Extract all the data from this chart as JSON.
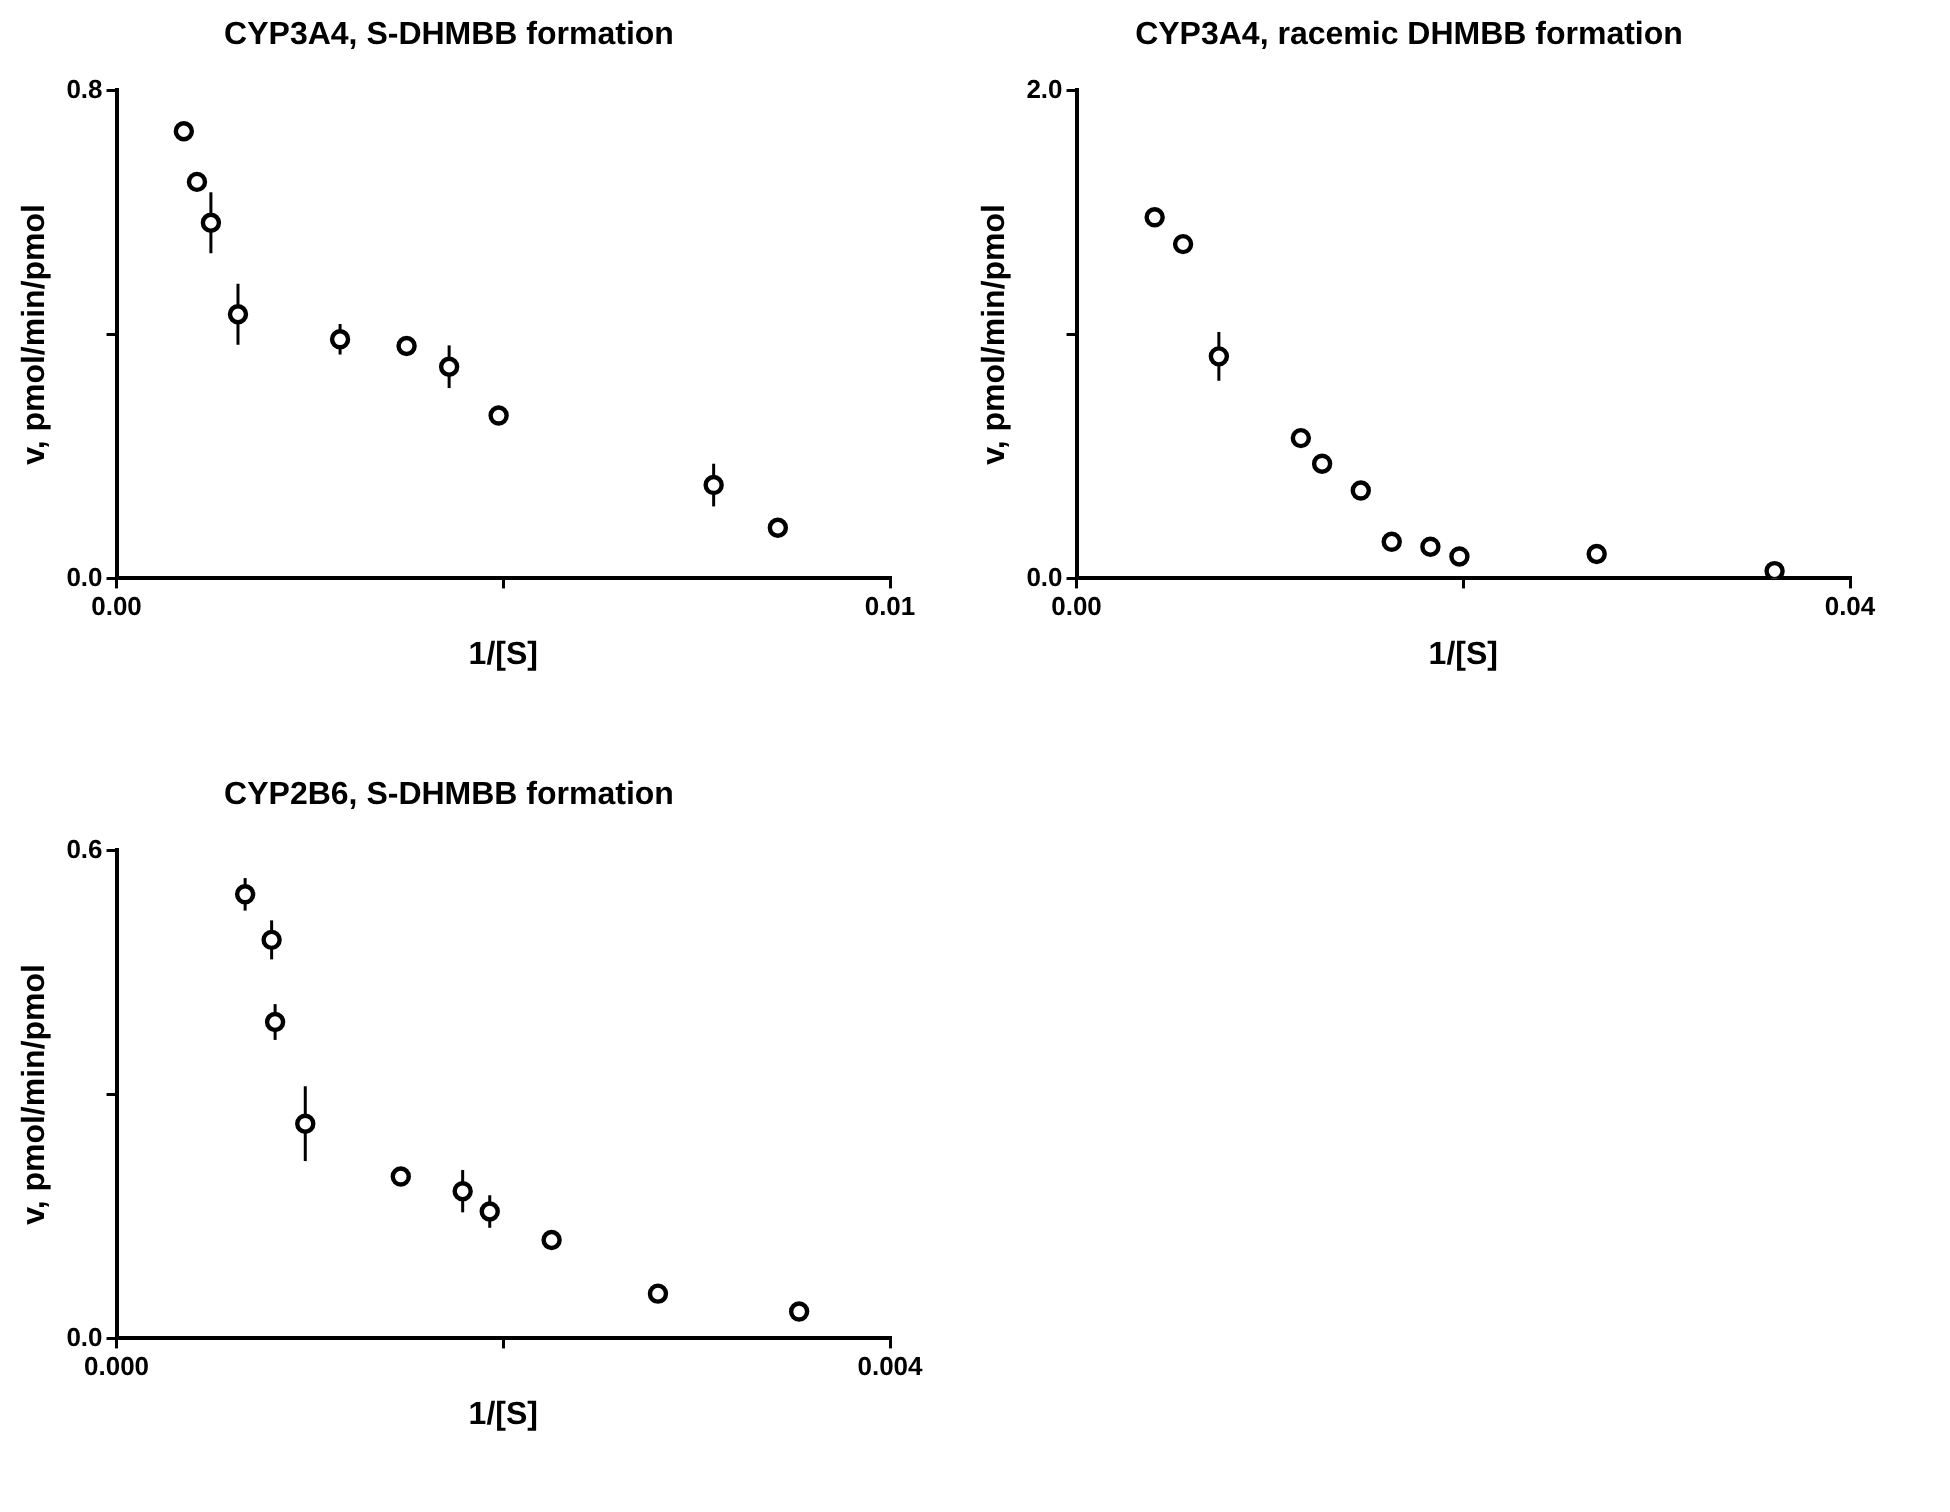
{
  "chart_data": [
    {
      "type": "scatter",
      "title": "CYP3A4, S-DHMBB formation",
      "xlabel": "1/[S]",
      "ylabel": "v, pmol/min/pmol",
      "x": [
        0.00087,
        0.00104,
        0.00122,
        0.00157,
        0.00289,
        0.00375,
        0.0043,
        0.00494,
        0.00772,
        0.00855
      ],
      "values": [
        0.733,
        0.65,
        0.583,
        0.433,
        0.392,
        0.381,
        0.347,
        0.267,
        0.153,
        0.083
      ],
      "errors": [
        null,
        null,
        0.05,
        0.05,
        0.025,
        null,
        0.035,
        null,
        0.035,
        null
      ],
      "color": "#000000",
      "marker": "circle",
      "grid": false,
      "xlim": [
        0,
        0.01
      ],
      "xticks": [
        {
          "value": 0,
          "label": "0.00"
        },
        {
          "value": 0.005,
          "label": null
        },
        0.01
      ],
      "ylim": [
        0,
        0.8
      ],
      "yticks": [
        {
          "value": 0,
          "label": "0.0"
        },
        {
          "value": 0.4,
          "label": null
        },
        0.8
      ]
    },
    {
      "type": "scatter",
      "title": "CYP3A4, racemic DHMBB formation",
      "xlabel": "1/[S]",
      "ylabel": "v, pmol/min/pmol",
      "x": [
        0.00404,
        0.00551,
        0.00736,
        0.0116,
        0.0127,
        0.0147,
        0.0163,
        0.0183,
        0.0198,
        0.0269,
        0.0361
      ],
      "values": [
        1.48,
        1.37,
        0.91,
        0.575,
        0.47,
        0.36,
        0.15,
        0.13,
        0.09,
        0.1,
        0.03
      ],
      "errors": [
        null,
        null,
        0.1,
        null,
        null,
        null,
        null,
        null,
        null,
        null,
        null
      ],
      "color": "#000000",
      "marker": "circle",
      "grid": false,
      "xlim": [
        0,
        0.04
      ],
      "xticks": [
        {
          "value": 0,
          "label": "0.00"
        },
        {
          "value": 0.02,
          "label": null
        },
        0.04
      ],
      "ylim": [
        0,
        2
      ],
      "yticks": [
        {
          "value": 0,
          "label": "0.0"
        },
        {
          "value": 1,
          "label": null
        },
        {
          "value": 2,
          "label": "2.0"
        }
      ]
    },
    {
      "type": "scatter",
      "title": "CYP2B6, S-DHMBB formation",
      "xlabel": "1/[S]",
      "ylabel": "v, pmol/min/pmol",
      "x": [
        0.000665,
        0.000802,
        0.00082,
        0.000976,
        0.00147,
        0.00179,
        0.00193,
        0.00225,
        0.0028,
        0.00353
      ],
      "values": [
        0.546,
        0.49,
        0.389,
        0.264,
        0.199,
        0.181,
        0.156,
        0.121,
        0.055,
        0.033
      ],
      "errors": [
        0.02,
        0.024,
        0.022,
        0.046,
        null,
        0.026,
        0.02,
        null,
        null,
        null
      ],
      "color": "#000000",
      "marker": "circle",
      "grid": false,
      "xlim": [
        0,
        0.004
      ],
      "xticks": [
        {
          "value": 0,
          "label": "0.000"
        },
        {
          "value": 0.002,
          "label": null
        },
        0.004
      ],
      "ylim": [
        0,
        0.6
      ],
      "yticks": [
        {
          "value": 0,
          "label": "0.0"
        },
        {
          "value": 0.3,
          "label": null
        },
        0.6
      ]
    }
  ]
}
